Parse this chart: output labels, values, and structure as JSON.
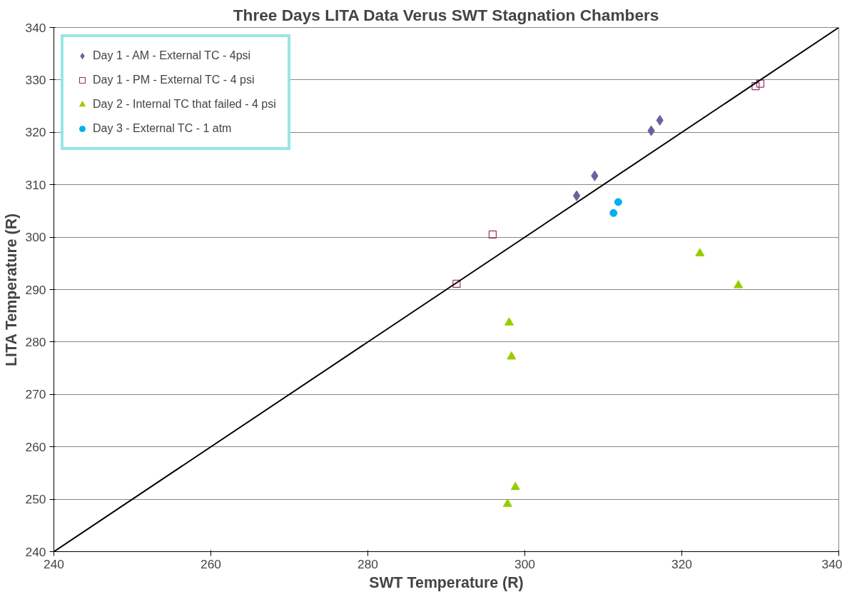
{
  "chart_data": {
    "type": "scatter",
    "title": "Three Days LITA Data Verus SWT Stagnation Chambers",
    "xlabel": "SWT Temperature (R)",
    "ylabel": "LITA Temperature (R)",
    "xlim": [
      240,
      340
    ],
    "ylim": [
      240,
      340
    ],
    "xticks": [
      240,
      260,
      280,
      300,
      320,
      340
    ],
    "yticks": [
      240,
      250,
      260,
      270,
      280,
      290,
      300,
      310,
      320,
      330,
      340
    ],
    "grid": "y",
    "legend": "top left",
    "series": [
      {
        "name": "Day 1 - AM - External TC - 4psi",
        "color": "#65659c",
        "marker": "diamond",
        "x": [
          306.6,
          308.9,
          316.1,
          317.2
        ],
        "values": [
          307.9,
          311.7,
          320.3,
          322.3
        ]
      },
      {
        "name": "Day 1 - PM - External TC - 4 psi",
        "color": "#993366",
        "marker": "square",
        "x": [
          291.3,
          295.9,
          329.4,
          330.0
        ],
        "values": [
          291.1,
          300.5,
          328.8,
          329.3
        ]
      },
      {
        "name": "Day 2 - Internal TC that failed - 4 psi",
        "color": "#99cc00",
        "marker": "triangle",
        "x": [
          298.0,
          298.3,
          322.3,
          327.2,
          298.8,
          297.8
        ],
        "values": [
          283.7,
          277.2,
          296.9,
          290.8,
          252.3,
          249.1
        ]
      },
      {
        "name": "Day 3 - External TC - 1 atm",
        "color": "#00b0f0",
        "marker": "circle",
        "x": [
          311.3,
          311.9
        ],
        "values": [
          304.6,
          306.7
        ]
      },
      {
        "type": "line",
        "color": "#000000",
        "x": [
          240,
          340
        ],
        "values": [
          240,
          340
        ]
      }
    ]
  }
}
